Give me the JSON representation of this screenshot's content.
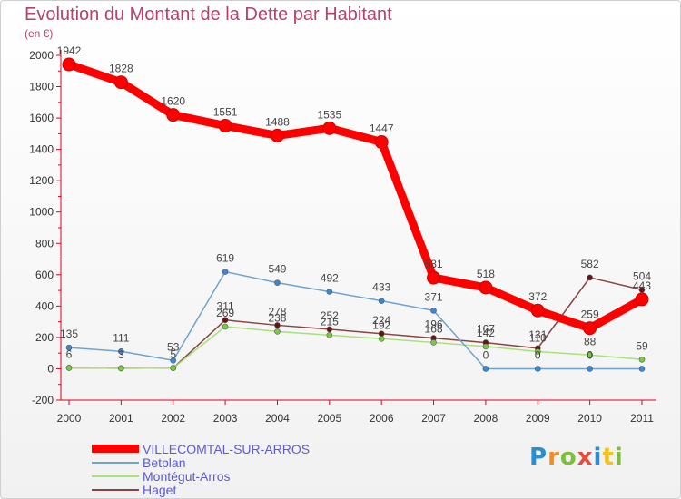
{
  "chart_data": {
    "type": "line",
    "title": "Evolution du Montant de la Dette par Habitant",
    "subtitle": "(en €)",
    "xlabel": "",
    "ylabel": "",
    "x": [
      "2000",
      "2001",
      "2002",
      "2003",
      "2004",
      "2005",
      "2006",
      "2007",
      "2008",
      "2009",
      "2010",
      "2011"
    ],
    "ylim": [
      -200,
      2000
    ],
    "yticks": [
      -200,
      0,
      200,
      400,
      600,
      800,
      1000,
      1200,
      1400,
      1600,
      1800,
      2000
    ],
    "grid": false,
    "legend_position": "bottom-left",
    "series": [
      {
        "name": "VILLECOMTAL-SUR-ARROS",
        "color": "#ff0000",
        "marker": "#ff0000",
        "values": [
          1942,
          1828,
          1620,
          1551,
          1488,
          1535,
          1447,
          581,
          518,
          372,
          259,
          443
        ],
        "labels": [
          "1942",
          "1828",
          "1620",
          "1551",
          "1488",
          "1535",
          "1447",
          "581",
          "518",
          "372",
          "259",
          "443"
        ]
      },
      {
        "name": "Betplan",
        "color": "#6fa3cf",
        "marker": "#3c87d6",
        "values": [
          135,
          111,
          53,
          619,
          549,
          492,
          433,
          371,
          0,
          0,
          0,
          0
        ],
        "labels": [
          "135",
          "111",
          "53",
          "619",
          "549",
          "492",
          "433",
          "371",
          "0",
          "0",
          "0",
          ""
        ]
      },
      {
        "name": "Montégut-Arros",
        "color": "#a8e07a",
        "marker": "#72d13a",
        "values": [
          6,
          3,
          5,
          269,
          238,
          215,
          192,
          168,
          142,
          110,
          88,
          59
        ],
        "labels": [
          "6",
          "3",
          "5",
          "269",
          "238",
          "215",
          "192",
          "168",
          "142",
          "110",
          "88",
          "59"
        ]
      },
      {
        "name": "Haget",
        "color": "#8a4444",
        "marker": "#6b1111",
        "values": [
          6,
          3,
          5,
          311,
          278,
          252,
          224,
          196,
          167,
          131,
          582,
          504
        ],
        "labels": [
          "",
          "",
          "",
          "311",
          "278",
          "252",
          "224",
          "196",
          "167",
          "131",
          "582",
          "504"
        ]
      }
    ]
  },
  "logo": {
    "letters": [
      "P",
      "r",
      "o",
      "x",
      "i",
      "t",
      "i"
    ]
  }
}
